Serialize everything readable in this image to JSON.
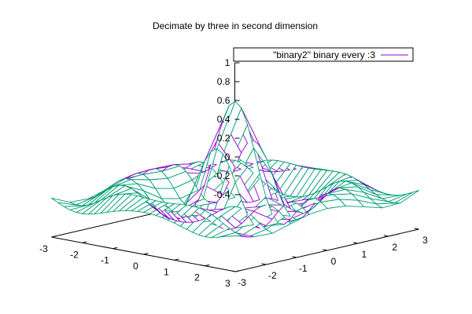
{
  "chart_data": {
    "type": "surface",
    "title": "Decimate by three in second dimension",
    "series": [
      {
        "name": "\"binary2\" binary every :3",
        "top_color": "#009e73",
        "bottom_color": "#9400d3",
        "function": "sinc(sqrt(x^2+y^2))"
      }
    ],
    "xlim": [
      -3,
      3
    ],
    "ylim": [
      -3,
      3
    ],
    "zlim": [
      -0.4,
      1
    ],
    "x_ticks": [
      "-3",
      "-2",
      "-1",
      "0",
      "1",
      "2",
      "3"
    ],
    "y_ticks": [
      "-3",
      "-2",
      "-1",
      "0",
      "1",
      "2",
      "3"
    ],
    "z_ticks": [
      "-0.4",
      "-0.2",
      "0",
      "0.2",
      "0.4",
      "0.6",
      "0.8",
      "1"
    ],
    "x_sampling": "every point",
    "y_sampling": "every 3rd point",
    "grid": false,
    "legend_position": "top-right"
  }
}
